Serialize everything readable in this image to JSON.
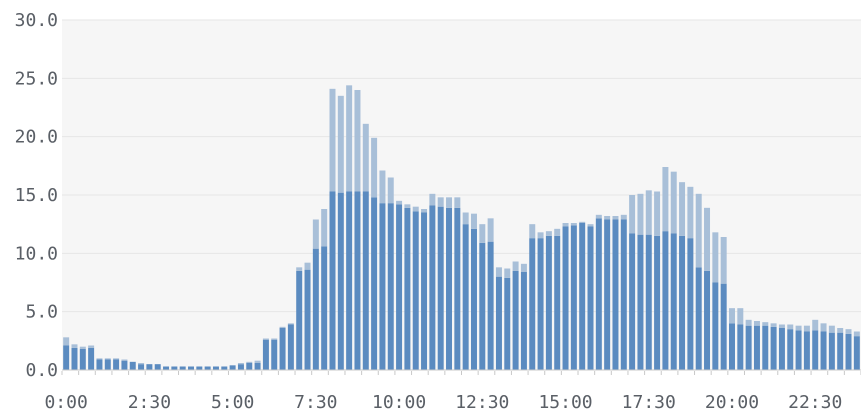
{
  "chart_data": {
    "type": "bar",
    "stacked": true,
    "grid": true,
    "ylim": [
      0,
      30
    ],
    "y_ticks": [
      "0.0",
      "5.0",
      "10.0",
      "15.0",
      "20.0",
      "25.0",
      "30.0"
    ],
    "x_tick_labels": [
      "0:00",
      "2:30",
      "5:00",
      "7:30",
      "10:00",
      "12:30",
      "15:00",
      "17:30",
      "20:00",
      "22:30"
    ],
    "colors": {
      "lower": "#5b8bc0",
      "upper": "#a8bfd8",
      "grid": "#e6e6e6",
      "background": "#f6f6f6"
    },
    "series": [
      {
        "values": [
          2.1,
          1.9,
          1.8,
          1.9,
          0.9,
          0.9,
          0.9,
          0.8,
          0.7,
          0.5,
          0.5,
          0.5,
          0.3,
          0.3,
          0.3,
          0.3,
          0.3,
          0.3,
          0.3,
          0.3,
          0.4,
          0.5,
          0.6,
          0.6,
          2.6,
          2.6,
          3.6,
          3.9,
          8.5,
          8.6,
          10.4,
          10.6,
          15.3,
          15.2,
          15.3,
          15.3,
          15.3,
          14.8,
          14.3,
          14.3,
          14.2,
          13.9,
          13.6,
          13.5,
          14.1,
          14.0,
          13.9,
          13.9,
          12.5,
          12.1,
          10.9,
          11.0,
          8.0,
          7.9,
          8.5,
          8.4,
          11.3,
          11.3,
          11.5,
          11.5,
          12.3,
          12.4,
          12.6,
          12.3,
          13.0,
          12.9,
          12.9,
          12.9,
          11.7,
          11.6,
          11.6,
          11.5,
          11.9,
          11.7,
          11.5,
          11.3,
          8.8,
          8.5,
          7.5,
          7.4,
          4.0,
          3.9,
          3.8,
          3.8,
          3.8,
          3.7,
          3.6,
          3.5,
          3.4,
          3.3,
          3.4,
          3.3,
          3.2,
          3.2,
          3.1,
          2.9
        ]
      },
      {
        "values": [
          0.7,
          0.3,
          0.2,
          0.2,
          0.1,
          0.1,
          0.1,
          0.1,
          0.0,
          0.1,
          0.0,
          0.0,
          0.0,
          0.0,
          0.0,
          0.0,
          0.0,
          0.0,
          0.0,
          0.0,
          0.0,
          0.1,
          0.1,
          0.2,
          0.1,
          0.1,
          0.1,
          0.1,
          0.3,
          0.6,
          2.5,
          3.2,
          8.8,
          8.3,
          9.1,
          8.7,
          5.8,
          5.1,
          2.8,
          2.2,
          0.3,
          0.3,
          0.4,
          0.3,
          1.0,
          0.8,
          0.9,
          0.9,
          1.0,
          1.3,
          1.6,
          2.0,
          0.8,
          0.8,
          0.8,
          0.7,
          1.2,
          0.5,
          0.4,
          0.6,
          0.3,
          0.2,
          0.1,
          0.2,
          0.3,
          0.3,
          0.3,
          0.4,
          3.3,
          3.5,
          3.8,
          3.8,
          5.5,
          5.3,
          4.6,
          4.4,
          6.3,
          5.4,
          4.3,
          4.0,
          1.3,
          1.4,
          0.5,
          0.4,
          0.3,
          0.3,
          0.3,
          0.4,
          0.4,
          0.5,
          0.9,
          0.7,
          0.6,
          0.4,
          0.4,
          0.4
        ]
      }
    ]
  }
}
